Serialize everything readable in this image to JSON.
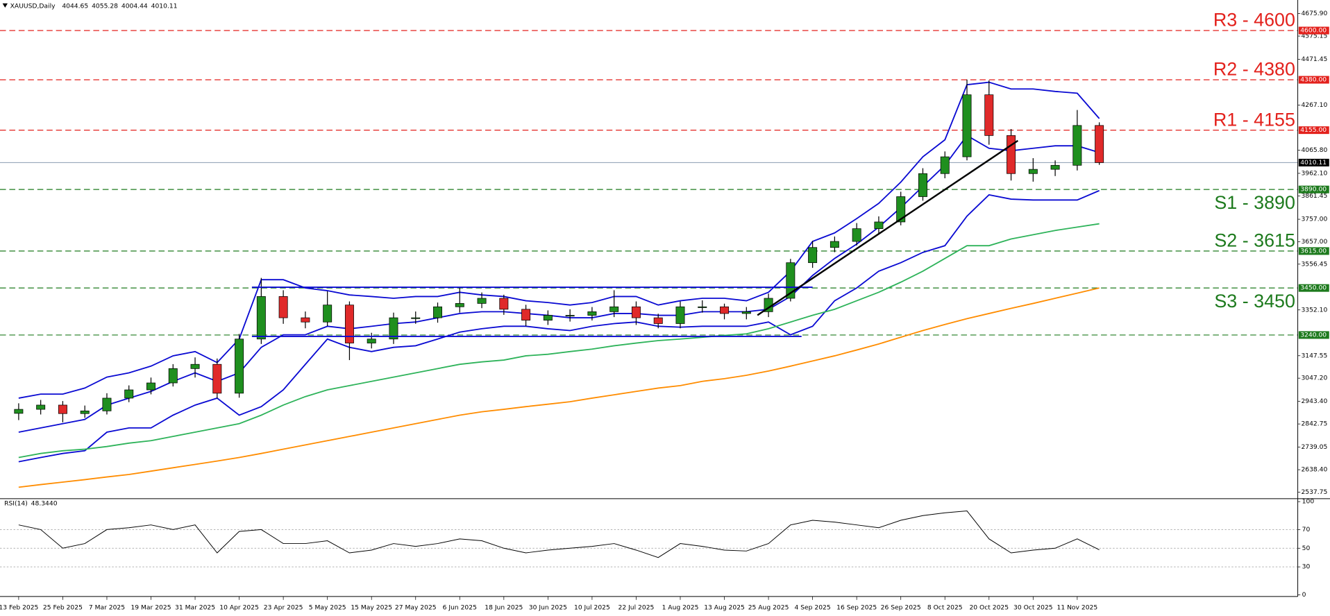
{
  "chart_data": {
    "type": "candlestick",
    "title": "XAUUSD,Daily",
    "header_values": [
      4044.65,
      4055.28,
      4004.44,
      4010.11
    ],
    "categories": [
      "13 Feb 2025",
      null,
      "25 Feb 2025",
      null,
      "7 Mar 2025",
      null,
      "19 Mar 2025",
      null,
      "31 Mar 2025",
      null,
      "10 Apr 2025",
      null,
      "23 Apr 2025",
      null,
      "5 May 2025",
      null,
      "15 May 2025",
      null,
      "27 May 2025",
      null,
      "6 Jun 2025",
      null,
      "18 Jun 2025",
      null,
      "30 Jun 2025",
      null,
      "10 Jul 2025",
      null,
      "22 Jul 2025",
      null,
      "1 Aug 2025",
      null,
      "13 Aug 2025",
      null,
      "25 Aug 2025",
      null,
      "4 Sep 2025",
      null,
      "16 Sep 2025",
      null,
      "26 Sep 2025",
      null,
      "8 Oct 2025",
      null,
      "20 Oct 2025",
      null,
      "30 Oct 2025",
      null,
      "11 Nov 2025",
      null
    ],
    "open": [
      2890,
      2908,
      2927,
      2889,
      2901,
      2958,
      2995,
      3026,
      3090,
      3109,
      2980,
      3222,
      3412,
      3317,
      3298,
      3374,
      3204,
      3222,
      3317,
      3317,
      3366,
      3381,
      3404,
      3355,
      3306,
      3328,
      3328,
      3344,
      3366,
      3317,
      3291,
      3366,
      3366,
      3336,
      3344,
      3404,
      3563,
      3631,
      3658,
      3715,
      3745,
      3858,
      3961,
      4036,
      4313,
      4131,
      3961,
      3980,
      3998,
      4176
    ],
    "high": [
      2935,
      2950,
      2945,
      2925,
      2980,
      3015,
      3050,
      3110,
      3140,
      3135,
      3245,
      3495,
      3440,
      3345,
      3435,
      3390,
      3250,
      3340,
      3345,
      3385,
      3450,
      3430,
      3420,
      3375,
      3350,
      3355,
      3365,
      3440,
      3390,
      3335,
      3390,
      3395,
      3380,
      3365,
      3425,
      3580,
      3660,
      3680,
      3740,
      3770,
      3880,
      3985,
      4060,
      4381,
      4377,
      4160,
      4030,
      4020,
      4245,
      4190
    ],
    "low": [
      2860,
      2885,
      2850,
      2870,
      2885,
      2940,
      2975,
      3010,
      3050,
      2957,
      2960,
      3200,
      3290,
      3270,
      3280,
      3128,
      3180,
      3200,
      3290,
      3295,
      3340,
      3360,
      3330,
      3280,
      3285,
      3300,
      3305,
      3320,
      3285,
      3270,
      3270,
      3340,
      3310,
      3310,
      3320,
      3390,
      3540,
      3610,
      3640,
      3690,
      3730,
      3840,
      3940,
      4020,
      4090,
      3930,
      3925,
      3950,
      3975,
      4000
    ],
    "close": [
      2908,
      2927,
      2889,
      2901,
      2958,
      2995,
      3026,
      3090,
      3109,
      2980,
      3222,
      3412,
      3317,
      3298,
      3374,
      3204,
      3222,
      3317,
      3317,
      3366,
      3381,
      3404,
      3355,
      3306,
      3328,
      3328,
      3344,
      3366,
      3317,
      3291,
      3366,
      3366,
      3336,
      3344,
      3404,
      3563,
      3631,
      3658,
      3715,
      3745,
      3858,
      3961,
      4036,
      4313,
      4131,
      3961,
      3980,
      3998,
      4176,
      4010.11
    ],
    "up_color": "#1f8f1f",
    "down_color": "#e02a2a",
    "overlays": [
      {
        "color": "#0a0ad2",
        "values": [
          2958,
          2976,
          2976,
          3003,
          3052,
          3071,
          3101,
          3147,
          3166,
          3117,
          3222,
          3487,
          3487,
          3450,
          3438,
          3419,
          3412,
          3404,
          3412,
          3412,
          3431,
          3419,
          3412,
          3393,
          3385,
          3374,
          3385,
          3412,
          3412,
          3374,
          3393,
          3404,
          3404,
          3393,
          3431,
          3525,
          3658,
          3696,
          3760,
          3828,
          3923,
          4036,
          4112,
          4358,
          4369,
          4339,
          4339,
          4328,
          4320,
          4207
        ]
      },
      {
        "color": "#0a0ad2",
        "values": [
          2806,
          2825,
          2844,
          2863,
          2927,
          2958,
          2988,
          3033,
          3071,
          3033,
          3071,
          3185,
          3241,
          3241,
          3279,
          3268,
          3279,
          3291,
          3298,
          3317,
          3336,
          3344,
          3344,
          3336,
          3328,
          3317,
          3317,
          3336,
          3336,
          3328,
          3328,
          3344,
          3344,
          3344,
          3355,
          3412,
          3506,
          3582,
          3646,
          3722,
          3809,
          3904,
          3998,
          4131,
          4074,
          4063,
          4074,
          4085,
          4085,
          4055
        ]
      },
      {
        "color": "#0a0ad2",
        "values": [
          2674,
          2693,
          2711,
          2723,
          2806,
          2825,
          2825,
          2882,
          2927,
          2958,
          2882,
          2920,
          2995,
          3109,
          3222,
          3185,
          3166,
          3185,
          3192,
          3222,
          3253,
          3268,
          3279,
          3279,
          3268,
          3260,
          3279,
          3291,
          3298,
          3279,
          3275,
          3279,
          3279,
          3279,
          3298,
          3241,
          3279,
          3393,
          3450,
          3525,
          3563,
          3609,
          3639,
          3771,
          3866,
          3847,
          3843,
          3843,
          3843,
          3885
        ]
      },
      {
        "color": "#2eb35a",
        "values": [
          2693,
          2711,
          2723,
          2730,
          2742,
          2757,
          2768,
          2787,
          2806,
          2825,
          2844,
          2882,
          2927,
          2965,
          2995,
          3014,
          3033,
          3052,
          3071,
          3090,
          3109,
          3120,
          3128,
          3147,
          3154,
          3166,
          3177,
          3192,
          3204,
          3215,
          3222,
          3230,
          3238,
          3245,
          3268,
          3298,
          3328,
          3355,
          3393,
          3431,
          3476,
          3525,
          3582,
          3639,
          3639,
          3669,
          3688,
          3707,
          3722,
          3737
        ]
      },
      {
        "color": "#ff8c00",
        "values": [
          2560,
          2572,
          2583,
          2594,
          2606,
          2617,
          2632,
          2647,
          2662,
          2677,
          2693,
          2711,
          2730,
          2749,
          2768,
          2787,
          2806,
          2825,
          2844,
          2863,
          2882,
          2897,
          2908,
          2920,
          2931,
          2942,
          2958,
          2973,
          2988,
          3003,
          3014,
          3033,
          3045,
          3060,
          3079,
          3101,
          3124,
          3147,
          3173,
          3200,
          3230,
          3260,
          3287,
          3313,
          3336,
          3359,
          3381,
          3404,
          3427,
          3450
        ]
      }
    ],
    "ylim": [
      2511,
      4725
    ],
    "yticks": [
      {
        "value": 4675.9,
        "label": "4675.90"
      },
      {
        "value": 4575.15,
        "label": "4575.15"
      },
      {
        "value": 4471.45,
        "label": "4471.45"
      },
      {
        "value": 4267.1,
        "label": "4267.10"
      },
      {
        "value": 4065.8,
        "label": "4065.80"
      },
      {
        "value": 3962.1,
        "label": "3962.10"
      },
      {
        "value": 3861.45,
        "label": "3861.45"
      },
      {
        "value": 3757,
        "label": "3757.00"
      },
      {
        "value": 3657,
        "label": "3657.00"
      },
      {
        "value": 3556.45,
        "label": "3556.45"
      },
      {
        "value": 3352.1,
        "label": "3352.10"
      },
      {
        "value": 3147.55,
        "label": "3147.55"
      },
      {
        "value": 3047.2,
        "label": "3047.20"
      },
      {
        "value": 2943.4,
        "label": "2943.40"
      },
      {
        "value": 2842.75,
        "label": "2842.75"
      },
      {
        "value": 2739.05,
        "label": "2739.05"
      },
      {
        "value": 2638.4,
        "label": "2638.40"
      },
      {
        "value": 2537.75,
        "label": "2537.75"
      }
    ],
    "levels": [
      {
        "name": "R3 - 4600",
        "value": 4600,
        "label": "4600.00",
        "color": "#e3211c",
        "side": "above"
      },
      {
        "name": "R2 - 4380",
        "value": 4380,
        "label": "4380.00",
        "color": "#e3211c",
        "side": "above"
      },
      {
        "name": "R1 - 4155",
        "value": 4155,
        "label": "4155.00",
        "color": "#e3211c",
        "side": "above"
      },
      {
        "name": "S1 - 3890",
        "value": 3890,
        "label": "3890.00",
        "color": "#1d7a1d",
        "side": "below"
      },
      {
        "name": "S2 - 3615",
        "value": 3615,
        "label": "3615.00",
        "color": "#1d7a1d",
        "side": "above"
      },
      {
        "name": "S3 - 3450",
        "value": 3450,
        "label": "3450.00",
        "color": "#1d7a1d",
        "side": "below"
      },
      {
        "value": 3240,
        "label": "3240.00",
        "color": "#1d7a1d"
      }
    ],
    "price_line": {
      "value": 4010.11,
      "color": "#8a9bb0"
    },
    "rsi": {
      "title": "RSI(14)",
      "last": {
        "value": 48.344,
        "label": "48.3440"
      },
      "values": [
        75,
        70,
        50,
        55,
        70,
        72,
        75,
        70,
        75,
        45,
        68,
        70,
        55,
        55,
        58,
        45,
        48,
        55,
        52,
        55,
        60,
        58,
        50,
        45,
        48,
        50,
        52,
        55,
        48,
        40,
        55,
        52,
        48,
        47,
        55,
        75,
        80,
        78,
        75,
        72,
        80,
        85,
        88,
        90,
        60,
        45,
        48,
        50,
        60,
        48.344
      ],
      "ylim": [
        0,
        100
      ],
      "yticks": [
        100,
        70,
        50,
        30,
        0
      ],
      "levels": [
        70,
        50,
        30
      ],
      "color": "#000000"
    }
  }
}
